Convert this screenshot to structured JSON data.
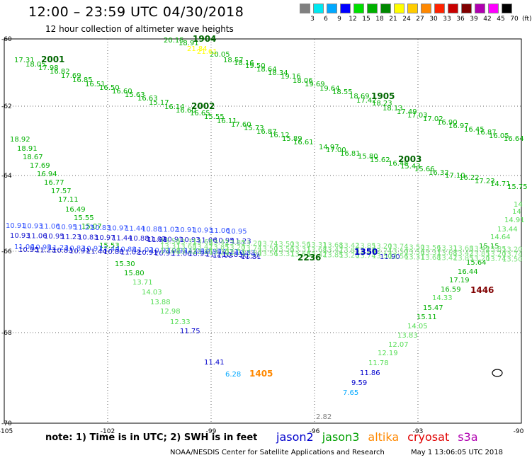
{
  "title": "12:00 – 23:59 UTC 04/30/2018",
  "subtitle": "12 hour collection of altimeter wave heights",
  "color_scale": {
    "colors": [
      "#808080",
      "#00e8f0",
      "#00a8ff",
      "#0000ff",
      "#00e000",
      "#00b000",
      "#008800",
      "#ffff00",
      "#ffcc00",
      "#ff8800",
      "#ff2200",
      "#c80000",
      "#800000",
      "#b000b0",
      "#ff00ff",
      "#000000"
    ],
    "labels": [
      "3",
      "6",
      "9",
      "12",
      "15",
      "18",
      "21",
      "24",
      "27",
      "30",
      "33",
      "36",
      "39",
      "42",
      "45",
      "70"
    ],
    "unit": "(ft)"
  },
  "axes": {
    "lat_labels": [
      "-60",
      "-62",
      "-64",
      "-66",
      "-68",
      "-70"
    ],
    "lon_labels": [
      "-105",
      "-102",
      "-99",
      "-96",
      "-93",
      "-90"
    ]
  },
  "track_ids": [
    {
      "text": "1904",
      "color": "#006600"
    },
    {
      "text": "2001",
      "color": "#006600"
    },
    {
      "text": "2002",
      "color": "#006600"
    },
    {
      "text": "1905",
      "color": "#006600"
    },
    {
      "text": "2003",
      "color": "#006600"
    },
    {
      "text": "1446",
      "color": "#800000"
    },
    {
      "text": "1405",
      "color": "#ff8800"
    },
    {
      "text": "2236",
      "color": "#006600"
    },
    {
      "text": "1350",
      "color": "#0000cc"
    }
  ],
  "readings": [
    {
      "t": "20.15",
      "c": "#00b000"
    },
    {
      "t": "18.91",
      "c": "#00b000"
    },
    {
      "t": "21.84",
      "c": "#ffff00"
    },
    {
      "t": "21.61",
      "c": "#ffff00"
    },
    {
      "t": "20.05",
      "c": "#00b000"
    },
    {
      "t": "18.57",
      "c": "#00b000"
    },
    {
      "t": "18.16",
      "c": "#00b000"
    },
    {
      "t": "19.50",
      "c": "#00b000"
    },
    {
      "t": "18.64",
      "c": "#00b000"
    },
    {
      "t": "18.34",
      "c": "#00b000"
    },
    {
      "t": "19.16",
      "c": "#00b000"
    },
    {
      "t": "18.06",
      "c": "#00b000"
    },
    {
      "t": "19.69",
      "c": "#00b000"
    },
    {
      "t": "19.64",
      "c": "#00b000"
    },
    {
      "t": "18.55",
      "c": "#00b000"
    },
    {
      "t": "18.69",
      "c": "#00b000"
    },
    {
      "t": "17.42",
      "c": "#00b000"
    },
    {
      "t": "18.23",
      "c": "#00b000"
    },
    {
      "t": "18.13",
      "c": "#00b000"
    },
    {
      "t": "17.49",
      "c": "#00b000"
    },
    {
      "t": "17.03",
      "c": "#00b000"
    },
    {
      "t": "17.02",
      "c": "#00b000"
    },
    {
      "t": "16.90",
      "c": "#00b000"
    },
    {
      "t": "16.97",
      "c": "#00b000"
    },
    {
      "t": "16.45",
      "c": "#00b000"
    },
    {
      "t": "16.87",
      "c": "#00b000"
    },
    {
      "t": "16.05",
      "c": "#00b000"
    },
    {
      "t": "16.64",
      "c": "#00b000"
    },
    {
      "t": "17.31",
      "c": "#00b000"
    },
    {
      "t": "18.05",
      "c": "#00b000"
    },
    {
      "t": "17.98",
      "c": "#00b000"
    },
    {
      "t": "16.82",
      "c": "#00b000"
    },
    {
      "t": "17.69",
      "c": "#00b000"
    },
    {
      "t": "16.85",
      "c": "#00b000"
    },
    {
      "t": "16.51",
      "c": "#00b000"
    },
    {
      "t": "16.50",
      "c": "#00b000"
    },
    {
      "t": "16.60",
      "c": "#00b000"
    },
    {
      "t": "15.63",
      "c": "#00b000"
    },
    {
      "t": "16.63",
      "c": "#00b000"
    },
    {
      "t": "15.17",
      "c": "#00b000"
    },
    {
      "t": "16.14",
      "c": "#00b000"
    },
    {
      "t": "16.60",
      "c": "#00b000"
    },
    {
      "t": "16.65",
      "c": "#00b000"
    },
    {
      "t": "15.55",
      "c": "#00b000"
    },
    {
      "t": "16.11",
      "c": "#00b000"
    },
    {
      "t": "17.60",
      "c": "#00b000"
    },
    {
      "t": "15.73",
      "c": "#00b000"
    },
    {
      "t": "16.87",
      "c": "#00b000"
    },
    {
      "t": "16.12",
      "c": "#00b000"
    },
    {
      "t": "15.89",
      "c": "#00b000"
    },
    {
      "t": "16.61",
      "c": "#00b000"
    },
    {
      "t": "14.97",
      "c": "#00b000"
    },
    {
      "t": "17.00",
      "c": "#00b000"
    },
    {
      "t": "16.81",
      "c": "#00b000"
    },
    {
      "t": "15.80",
      "c": "#00b000"
    },
    {
      "t": "15.62",
      "c": "#00b000"
    },
    {
      "t": "16.48",
      "c": "#00b000"
    },
    {
      "t": "15.43",
      "c": "#00b000"
    },
    {
      "t": "15.66",
      "c": "#00b000"
    },
    {
      "t": "16.32",
      "c": "#00b000"
    },
    {
      "t": "17.10",
      "c": "#00b000"
    },
    {
      "t": "16.22",
      "c": "#00b000"
    },
    {
      "t": "17.23",
      "c": "#00b000"
    },
    {
      "t": "14.71",
      "c": "#00b000"
    },
    {
      "t": "15.75",
      "c": "#00b000"
    },
    {
      "t": "18.92",
      "c": "#00b000"
    },
    {
      "t": "18.91",
      "c": "#00b000"
    },
    {
      "t": "18.67",
      "c": "#00b000"
    },
    {
      "t": "17.69",
      "c": "#00b000"
    },
    {
      "t": "16.94",
      "c": "#00b000"
    },
    {
      "t": "16.77",
      "c": "#00b000"
    },
    {
      "t": "17.57",
      "c": "#00b000"
    },
    {
      "t": "17.11",
      "c": "#00b000"
    },
    {
      "t": "16.49",
      "c": "#00b000"
    },
    {
      "t": "15.55",
      "c": "#00b000"
    },
    {
      "t": "15.07",
      "c": "#00b000"
    },
    {
      "t": "15.53",
      "c": "#00b000"
    },
    {
      "t": "15.30",
      "c": "#00b000"
    },
    {
      "t": "15.80",
      "c": "#00b000"
    },
    {
      "t": "13.71",
      "c": "#55dd55"
    },
    {
      "t": "14.03",
      "c": "#55dd55"
    },
    {
      "t": "13.88",
      "c": "#55dd55"
    },
    {
      "t": "12.98",
      "c": "#55dd55"
    },
    {
      "t": "12.33",
      "c": "#55dd55"
    },
    {
      "t": "11.75",
      "c": "#0000cc"
    },
    {
      "t": "11.41",
      "c": "#0000cc"
    },
    {
      "t": "6.28",
      "c": "#00a8ff"
    },
    {
      "t": "9.59",
      "c": "#0000cc"
    },
    {
      "t": "7.65",
      "c": "#00a8ff"
    },
    {
      "t": "11.86",
      "c": "#0000cc"
    },
    {
      "t": "11.78",
      "c": "#55dd55"
    },
    {
      "t": "12.19",
      "c": "#55dd55"
    },
    {
      "t": "12.07",
      "c": "#55dd55"
    },
    {
      "t": "13.83",
      "c": "#55dd55"
    },
    {
      "t": "14.05",
      "c": "#55dd55"
    },
    {
      "t": "15.11",
      "c": "#00b000"
    },
    {
      "t": "15.47",
      "c": "#00b000"
    },
    {
      "t": "14.33",
      "c": "#55dd55"
    },
    {
      "t": "16.59",
      "c": "#00b000"
    },
    {
      "t": "17.19",
      "c": "#00b000"
    },
    {
      "t": "16.44",
      "c": "#00b000"
    },
    {
      "t": "15.64",
      "c": "#00b000"
    },
    {
      "t": "15.15",
      "c": "#00b000"
    },
    {
      "t": "14.64",
      "c": "#55dd55"
    },
    {
      "t": "13.44",
      "c": "#55dd55"
    },
    {
      "t": "14.91",
      "c": "#55dd55"
    },
    {
      "t": "14",
      "c": "#55dd55"
    },
    {
      "t": "14",
      "c": "#55dd55"
    },
    {
      "t": "2.82",
      "c": "#808080"
    },
    {
      "t": "11.98",
      "c": "#0000cc"
    },
    {
      "t": "11.03",
      "c": "#0000cc"
    },
    {
      "t": "11.31",
      "c": "#0000cc"
    },
    {
      "t": "11.90",
      "c": "#0000cc"
    }
  ],
  "footer": {
    "note": "note:  1) Time is in UTC; 2) SWH is in feet",
    "legend": [
      {
        "name": "jason2",
        "color": "#0000cc"
      },
      {
        "name": "jason3",
        "color": "#00a000"
      },
      {
        "name": "altika",
        "color": "#ff8800"
      },
      {
        "name": "cryosat",
        "color": "#e00000"
      },
      {
        "name": "s3a",
        "color": "#b000b0"
      }
    ],
    "credit": "NOAA/NESDIS Center for Satellite Applications and Research",
    "timestamp": "May  1 13:06:05 UTC 2018"
  }
}
